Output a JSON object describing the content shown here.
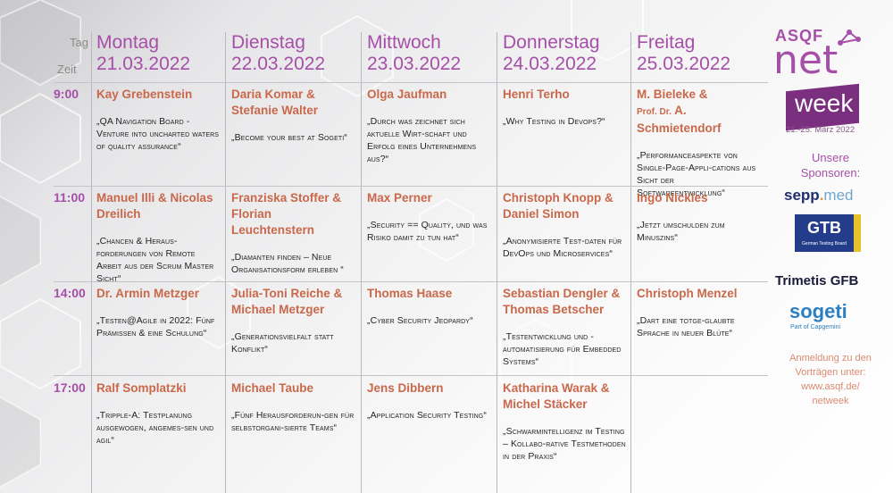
{
  "header": {
    "tag": "Tag",
    "zeit": "Zeit"
  },
  "days": [
    {
      "name": "Montag",
      "date": "21.03.2022"
    },
    {
      "name": "Dienstag",
      "date": "22.03.2022"
    },
    {
      "name": "Mittwoch",
      "date": "23.03.2022"
    },
    {
      "name": "Donnerstag",
      "date": "24.03.2022"
    },
    {
      "name": "Freitag",
      "date": "25.03.2022"
    }
  ],
  "slots": [
    "9:00",
    "11:00",
    "14:00",
    "17:00"
  ],
  "sessions": [
    [
      {
        "speaker": "Kay Grebenstein",
        "talk": "„QA Navigation Board - Venture into uncharted waters of quality assurance“"
      },
      {
        "speaker": "Daria Komar & Stefanie Walter",
        "talk": "„Become your best at Sogeti“"
      },
      {
        "speaker": "Olga Jaufman",
        "talk": "„Durch was zeichnet sich aktuelle Wirt-schaft und Erfolg eines Unternehmens aus?“"
      },
      {
        "speaker": "Henri Terho",
        "talk": "„Why Testing in Devops?“"
      },
      {
        "speaker": "M. Bieleke &",
        "speaker_prefix": "Prof. Dr.",
        "speaker_rest": "A. Schmietendorf",
        "talk": "„Performanceaspekte von Single-Page-Appli-cations aus Sicht der Softwareentwicklung“"
      }
    ],
    [
      {
        "speaker": "Manuel Illi & Nicolas Dreilich",
        "talk": "„Chancen & Heraus-forderungen von Remote Arbeit aus der Scrum Master Sicht“"
      },
      {
        "speaker": "Franziska Stoffer & Florian Leuchtenstern",
        "talk": "„Diamanten finden – Neue Organisationsform erleben “"
      },
      {
        "speaker": "Max Perner",
        "talk": "„Security == Quality, und was Risiko damit zu tun hat“"
      },
      {
        "speaker": "Christoph Knopp & Daniel Simon",
        "talk": "„Anonymisierte Test-daten für DevOps und Microservices“"
      },
      {
        "speaker": "Ingo Nickles",
        "talk": "„Jetzt umschulden zum Minuszins“"
      }
    ],
    [
      {
        "speaker": "Dr. Armin Metzger",
        "talk": "„Testen@Agile in 2022: Fünf Prämissen & eine Schulung“"
      },
      {
        "speaker": "Julia-Toni Reiche & Michael Metzger",
        "talk": "„Generationsvielfalt statt Konflikt“"
      },
      {
        "speaker": "Thomas Haase",
        "talk": "„Cyber Security Jeopardy“"
      },
      {
        "speaker": "Sebastian Dengler & Thomas Betscher",
        "talk": "„Testentwicklung und -automatisierung für Embedded Systems“"
      },
      {
        "speaker": "Christoph Menzel",
        "talk": "„Dart eine totge-glaubte Sprache in neuer Blüte“"
      }
    ],
    [
      {
        "speaker": "Ralf Somplatzki",
        "talk": "„Tripple-A: Testplanung ausgewogen, angemes-sen und agil“"
      },
      {
        "speaker": "Michael Taube",
        "talk": "„Fünf Herausforderun-gen für selbstorgani-sierte Teams“"
      },
      {
        "speaker": "Jens Dibbern",
        "talk": "„Application Security Testing“"
      },
      {
        "speaker": "Katharina Warak & Michel Stäcker",
        "talk": "„Schwarmintelligenz im Testing – Kollabo-rative Testmethoden in der Praxis“"
      },
      {
        "speaker": "",
        "talk": ""
      }
    ]
  ],
  "sidebar": {
    "logo_asqf": "ASQF",
    "logo_net": "net",
    "logo_week": "week",
    "logo_dates": "21.-25. März 2022",
    "sponsors_title": "Unsere Sponsoren:",
    "sponsor_sepp_a": "sepp",
    "sponsor_sepp_dot": ".",
    "sponsor_sepp_b": "med",
    "sponsor_gtb": "GTB",
    "sponsor_gtb_sub": "German Testing Board",
    "sponsor_trimetis": "Trimetis GFB",
    "sponsor_sogeti": "sogeti",
    "sponsor_sogeti_sub": "Part of Capgemini",
    "anmeldung": "Anmeldung zu den Vorträgen unter: www.asqf.de/ netweek"
  },
  "colors": {
    "accent": "#a64fa8",
    "speaker": "#c9684a",
    "text": "#222222"
  }
}
